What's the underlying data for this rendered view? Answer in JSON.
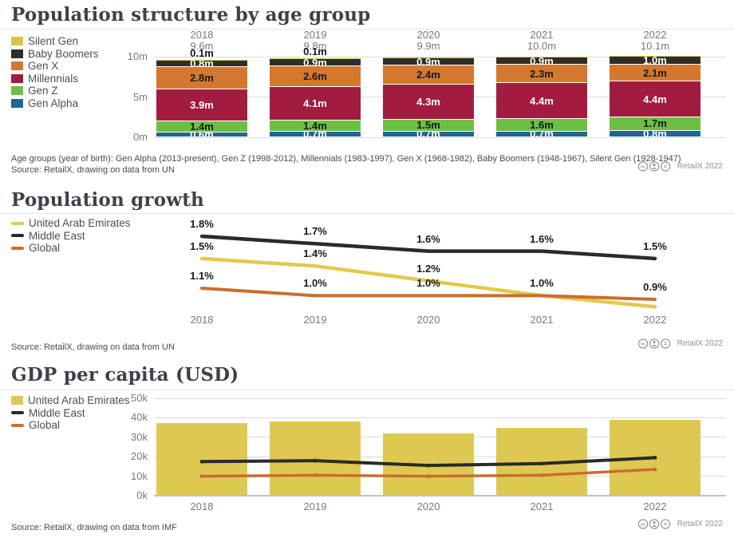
{
  "badge": {
    "label": "RetailX 2022",
    "icons": [
      "cc-icon",
      "attribution-person-icon",
      "equals-icon"
    ]
  },
  "charts": [
    {
      "title": "Population structure by age group",
      "legend": [
        {
          "label": "Silent Gen",
          "color": "#d8c44a",
          "swatch": "box"
        },
        {
          "label": "Baby Boomers",
          "color": "#2e2d2a",
          "swatch": "box"
        },
        {
          "label": "Gen X",
          "color": "#d5782f",
          "swatch": "box"
        },
        {
          "label": "Millennials",
          "color": "#a21c3f",
          "swatch": "box"
        },
        {
          "label": "Gen Z",
          "color": "#6cbf43",
          "swatch": "box"
        },
        {
          "label": "Gen Alpha",
          "color": "#20668f",
          "swatch": "box"
        }
      ],
      "footnote": "Age groups (year of birth): Gen Alpha (2013-present), Gen Z (1998-2012), Millennials (1983-1997), Gen X (1968-1982), Baby Boomers (1948-1967), Silent Gen (1928-1947)",
      "source": "Source: RetailX, drawing on data from UN",
      "chart_data": {
        "type": "bar",
        "stacked": true,
        "categories": [
          "2018",
          "2019",
          "2020",
          "2021",
          "2022"
        ],
        "totals": [
          "9.6m",
          "9.8m",
          "9.9m",
          "10.0m",
          "10.1m"
        ],
        "ylim": [
          0,
          10
        ],
        "ytick_values": [
          0,
          5,
          10
        ],
        "ytick_labels": [
          "0m",
          "5m",
          "10m"
        ],
        "top_labels": [
          "0.1m",
          "0.1m",
          "",
          "",
          ""
        ],
        "series": [
          {
            "name": "Gen Alpha",
            "color": "#20668f",
            "label_color": "#ffffff",
            "values": [
              0.6,
              0.7,
              0.7,
              0.7,
              0.8
            ],
            "labels": [
              "0.6m",
              "0.7m",
              "0.7m",
              "0.7m",
              "0.8m"
            ]
          },
          {
            "name": "Gen Z",
            "color": "#6cbf43",
            "label_color": "#16181b",
            "values": [
              1.4,
              1.4,
              1.5,
              1.6,
              1.7
            ],
            "labels": [
              "1.4m",
              "1.4m",
              "1.5m",
              "1.6m",
              "1.7m"
            ]
          },
          {
            "name": "Millennials",
            "color": "#a21c3f",
            "label_color": "#ffffff",
            "values": [
              3.9,
              4.1,
              4.3,
              4.4,
              4.4
            ],
            "labels": [
              "3.9m",
              "4.1m",
              "4.3m",
              "4.4m",
              "4.4m"
            ]
          },
          {
            "name": "Gen X",
            "color": "#d5782f",
            "label_color": "#16181b",
            "values": [
              2.8,
              2.6,
              2.4,
              2.3,
              2.1
            ],
            "labels": [
              "2.8m",
              "2.6m",
              "2.4m",
              "2.3m",
              "2.1m"
            ]
          },
          {
            "name": "Baby Boomers",
            "color": "#2e2d2a",
            "label_color": "#ffffff",
            "values": [
              0.8,
              0.9,
              0.9,
              0.9,
              1.0
            ],
            "labels": [
              "0.8m",
              "0.9m",
              "0.9m",
              "0.9m",
              "1.0m"
            ]
          },
          {
            "name": "Silent Gen",
            "color": "#d8c44a",
            "label_color": "#16181b",
            "values": [
              0.1,
              0.1,
              0.1,
              0.1,
              0.1
            ],
            "labels": [
              "",
              "",
              "",
              "",
              ""
            ]
          }
        ]
      }
    },
    {
      "title": "Population growth",
      "legend": [
        {
          "label": "United Arab Emirates",
          "color": "#e2c94d",
          "swatch": "line"
        },
        {
          "label": "Middle East",
          "color": "#2b2a27",
          "swatch": "line"
        },
        {
          "label": "Global",
          "color": "#cb6d2f",
          "swatch": "line"
        }
      ],
      "source": "Source: RetailX, drawing on data from UN",
      "chart_data": {
        "type": "line",
        "x": [
          "2018",
          "2019",
          "2020",
          "2021",
          "2022"
        ],
        "ylim": [
          0.6,
          2.0
        ],
        "series": [
          {
            "name": "United Arab Emirates",
            "color": "#e2c94d",
            "width": 4.5,
            "values": [
              1.5,
              1.4,
              1.2,
              1.0,
              0.85
            ],
            "labels": [
              "1.5%",
              "1.4%",
              "1.2%",
              "",
              ""
            ]
          },
          {
            "name": "Middle East",
            "color": "#2b2a27",
            "width": 4.5,
            "values": [
              1.8,
              1.7,
              1.6,
              1.6,
              1.5
            ],
            "labels": [
              "1.8%",
              "1.7%",
              "1.6%",
              "1.6%",
              "1.5%"
            ]
          },
          {
            "name": "Global",
            "color": "#cb6d2f",
            "width": 4,
            "values": [
              1.1,
              1.0,
              1.0,
              1.0,
              0.95
            ],
            "labels": [
              "1.1%",
              "1.0%",
              "1.0%",
              "1.0%",
              "0.9%"
            ]
          }
        ]
      }
    },
    {
      "title": "GDP per capita (USD)",
      "legend": [
        {
          "label": "United Arab Emirates",
          "color": "#ddc952",
          "swatch": "box"
        },
        {
          "label": "Middle East",
          "color": "#2b2a27",
          "swatch": "line"
        },
        {
          "label": "Global",
          "color": "#cb6d2f",
          "swatch": "line"
        }
      ],
      "source": "Source: RetailX, drawing on data from IMF",
      "chart_data": {
        "type": "bar+line",
        "categories": [
          "2018",
          "2019",
          "2020",
          "2021",
          "2022"
        ],
        "ylim": [
          0,
          50
        ],
        "ytick_values": [
          0,
          10,
          20,
          30,
          40,
          50
        ],
        "ytick_labels": [
          "0k",
          "10k",
          "20k",
          "30k",
          "40k",
          "50k"
        ],
        "bar_series": {
          "name": "United Arab Emirates",
          "color": "#ddc952",
          "values": [
            37.5,
            38,
            32,
            35,
            39
          ]
        },
        "line_series": [
          {
            "name": "Middle East",
            "color": "#2b2a27",
            "width": 4,
            "values": [
              17.5,
              18,
              15.5,
              16.5,
              19.5
            ]
          },
          {
            "name": "Global",
            "color": "#cb6d2f",
            "width": 3.5,
            "values": [
              10,
              10.5,
              10,
              10.5,
              13.5
            ]
          }
        ]
      }
    }
  ]
}
